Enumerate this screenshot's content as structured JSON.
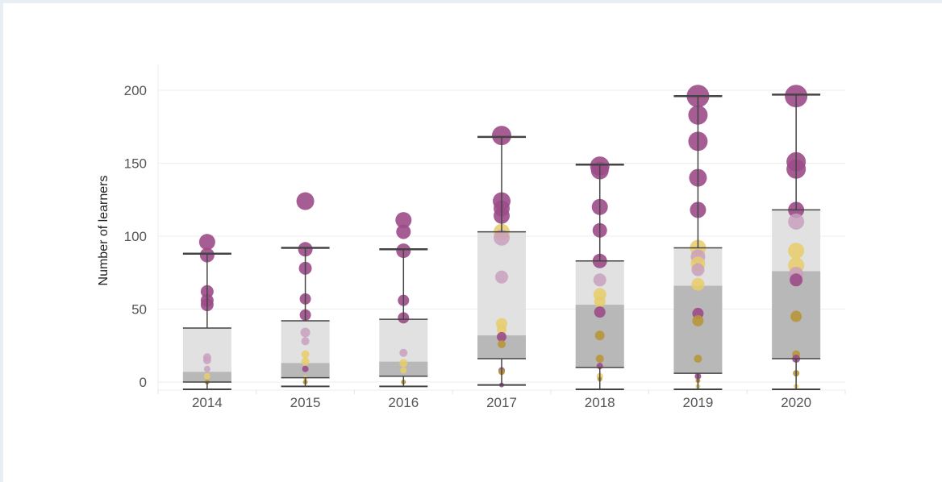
{
  "chart_data": {
    "type": "box",
    "ylabel": "Number of learners",
    "xlabel": "",
    "categories": [
      "2014",
      "2015",
      "2016",
      "2017",
      "2018",
      "2019",
      "2020"
    ],
    "ylim": [
      0,
      200
    ],
    "yticks": [
      0,
      50,
      100,
      150,
      200
    ],
    "grid": true,
    "legend": "none",
    "colors": {
      "outer_box": "#e1e1e1",
      "inner_box": "#b8b8b8",
      "whisker": "#444444",
      "purple_dots": "#9c4b88",
      "light_purple_dots": "#c9a0bd",
      "yellow_dots": "#e8cc6a",
      "gold_dots": "#b8963a",
      "gridline": "#eeeeee"
    },
    "boxes": [
      {
        "year": "2014",
        "whisker_low": -5,
        "box_low": 0,
        "inner_high": 7,
        "box_high": 37,
        "whisker_high": 88,
        "base_line": 0
      },
      {
        "year": "2015",
        "whisker_low": -3,
        "box_low": 3,
        "inner_high": 13,
        "box_high": 42,
        "whisker_high": 92,
        "base_line": 3
      },
      {
        "year": "2016",
        "whisker_low": -3,
        "box_low": 4,
        "inner_high": 14,
        "box_high": 43,
        "whisker_high": 91,
        "base_line": 4
      },
      {
        "year": "2017",
        "whisker_low": -2,
        "box_low": 16,
        "inner_high": 32,
        "box_high": 103,
        "whisker_high": 168,
        "base_line": 16
      },
      {
        "year": "2018",
        "whisker_low": -5,
        "box_low": 10,
        "inner_high": 53,
        "box_high": 83,
        "whisker_high": 149,
        "base_line": 10
      },
      {
        "year": "2019",
        "whisker_low": -5,
        "box_low": 6,
        "inner_high": 66,
        "box_high": 92,
        "whisker_high": 196,
        "base_line": 6
      },
      {
        "year": "2020",
        "whisker_low": -5,
        "box_low": 16,
        "inner_high": 76,
        "box_high": 118,
        "whisker_high": 197,
        "base_line": 16
      }
    ],
    "points": [
      {
        "year": "2014",
        "y": 96,
        "size": 10,
        "color": "purple_dots"
      },
      {
        "year": "2014",
        "y": 87,
        "size": 9,
        "color": "purple_dots"
      },
      {
        "year": "2014",
        "y": 62,
        "size": 8,
        "color": "purple_dots"
      },
      {
        "year": "2014",
        "y": 56,
        "size": 8,
        "color": "purple_dots"
      },
      {
        "year": "2014",
        "y": 53,
        "size": 8,
        "color": "purple_dots"
      },
      {
        "year": "2014",
        "y": 17,
        "size": 5,
        "color": "light_purple_dots"
      },
      {
        "year": "2014",
        "y": 15,
        "size": 5,
        "color": "light_purple_dots"
      },
      {
        "year": "2014",
        "y": 9,
        "size": 4,
        "color": "light_purple_dots"
      },
      {
        "year": "2014",
        "y": 4,
        "size": 4,
        "color": "yellow_dots"
      },
      {
        "year": "2014",
        "y": 0,
        "size": 3,
        "color": "gold_dots"
      },
      {
        "year": "2015",
        "y": 124,
        "size": 11,
        "color": "purple_dots"
      },
      {
        "year": "2015",
        "y": 91,
        "size": 9,
        "color": "purple_dots"
      },
      {
        "year": "2015",
        "y": 78,
        "size": 8,
        "color": "purple_dots"
      },
      {
        "year": "2015",
        "y": 57,
        "size": 7,
        "color": "purple_dots"
      },
      {
        "year": "2015",
        "y": 46,
        "size": 7,
        "color": "purple_dots"
      },
      {
        "year": "2015",
        "y": 34,
        "size": 6,
        "color": "light_purple_dots"
      },
      {
        "year": "2015",
        "y": 28,
        "size": 5,
        "color": "light_purple_dots"
      },
      {
        "year": "2015",
        "y": 19,
        "size": 5,
        "color": "yellow_dots"
      },
      {
        "year": "2015",
        "y": 14,
        "size": 5,
        "color": "yellow_dots"
      },
      {
        "year": "2015",
        "y": 9,
        "size": 4,
        "color": "purple_dots"
      },
      {
        "year": "2015",
        "y": 3,
        "size": 3,
        "color": "yellow_dots"
      },
      {
        "year": "2015",
        "y": 0,
        "size": 3,
        "color": "gold_dots"
      },
      {
        "year": "2016",
        "y": 111,
        "size": 10,
        "color": "purple_dots"
      },
      {
        "year": "2016",
        "y": 103,
        "size": 9,
        "color": "purple_dots"
      },
      {
        "year": "2016",
        "y": 90,
        "size": 9,
        "color": "purple_dots"
      },
      {
        "year": "2016",
        "y": 56,
        "size": 7,
        "color": "purple_dots"
      },
      {
        "year": "2016",
        "y": 44,
        "size": 7,
        "color": "purple_dots"
      },
      {
        "year": "2016",
        "y": 20,
        "size": 5,
        "color": "light_purple_dots"
      },
      {
        "year": "2016",
        "y": 13,
        "size": 5,
        "color": "yellow_dots"
      },
      {
        "year": "2016",
        "y": 8,
        "size": 4,
        "color": "yellow_dots"
      },
      {
        "year": "2016",
        "y": 0,
        "size": 3,
        "color": "gold_dots"
      },
      {
        "year": "2017",
        "y": 169,
        "size": 12,
        "color": "purple_dots"
      },
      {
        "year": "2017",
        "y": 124,
        "size": 11,
        "color": "purple_dots"
      },
      {
        "year": "2017",
        "y": 119,
        "size": 10,
        "color": "purple_dots"
      },
      {
        "year": "2017",
        "y": 114,
        "size": 10,
        "color": "purple_dots"
      },
      {
        "year": "2017",
        "y": 103,
        "size": 10,
        "color": "yellow_dots"
      },
      {
        "year": "2017",
        "y": 99,
        "size": 10,
        "color": "light_purple_dots"
      },
      {
        "year": "2017",
        "y": 72,
        "size": 8,
        "color": "light_purple_dots"
      },
      {
        "year": "2017",
        "y": 40,
        "size": 7,
        "color": "yellow_dots"
      },
      {
        "year": "2017",
        "y": 36,
        "size": 6,
        "color": "yellow_dots"
      },
      {
        "year": "2017",
        "y": 31,
        "size": 6,
        "color": "purple_dots"
      },
      {
        "year": "2017",
        "y": 26,
        "size": 5,
        "color": "gold_dots"
      },
      {
        "year": "2017",
        "y": 8,
        "size": 4,
        "color": "purple_dots"
      },
      {
        "year": "2017",
        "y": 7,
        "size": 4,
        "color": "gold_dots"
      },
      {
        "year": "2017",
        "y": -2,
        "size": 3,
        "color": "purple_dots"
      },
      {
        "year": "2018",
        "y": 148,
        "size": 12,
        "color": "purple_dots"
      },
      {
        "year": "2018",
        "y": 145,
        "size": 11,
        "color": "purple_dots"
      },
      {
        "year": "2018",
        "y": 120,
        "size": 10,
        "color": "purple_dots"
      },
      {
        "year": "2018",
        "y": 104,
        "size": 9,
        "color": "purple_dots"
      },
      {
        "year": "2018",
        "y": 83,
        "size": 9,
        "color": "purple_dots"
      },
      {
        "year": "2018",
        "y": 70,
        "size": 8,
        "color": "light_purple_dots"
      },
      {
        "year": "2018",
        "y": 60,
        "size": 8,
        "color": "yellow_dots"
      },
      {
        "year": "2018",
        "y": 55,
        "size": 7,
        "color": "yellow_dots"
      },
      {
        "year": "2018",
        "y": 48,
        "size": 7,
        "color": "purple_dots"
      },
      {
        "year": "2018",
        "y": 32,
        "size": 6,
        "color": "gold_dots"
      },
      {
        "year": "2018",
        "y": 16,
        "size": 5,
        "color": "gold_dots"
      },
      {
        "year": "2018",
        "y": 11,
        "size": 4,
        "color": "purple_dots"
      },
      {
        "year": "2018",
        "y": 4,
        "size": 4,
        "color": "yellow_dots"
      },
      {
        "year": "2018",
        "y": 2,
        "size": 3,
        "color": "gold_dots"
      },
      {
        "year": "2019",
        "y": 196,
        "size": 14,
        "color": "purple_dots"
      },
      {
        "year": "2019",
        "y": 183,
        "size": 12,
        "color": "purple_dots"
      },
      {
        "year": "2019",
        "y": 165,
        "size": 12,
        "color": "purple_dots"
      },
      {
        "year": "2019",
        "y": 140,
        "size": 11,
        "color": "purple_dots"
      },
      {
        "year": "2019",
        "y": 118,
        "size": 10,
        "color": "purple_dots"
      },
      {
        "year": "2019",
        "y": 92,
        "size": 10,
        "color": "yellow_dots"
      },
      {
        "year": "2019",
        "y": 86,
        "size": 9,
        "color": "light_purple_dots"
      },
      {
        "year": "2019",
        "y": 81,
        "size": 9,
        "color": "yellow_dots"
      },
      {
        "year": "2019",
        "y": 77,
        "size": 8,
        "color": "light_purple_dots"
      },
      {
        "year": "2019",
        "y": 67,
        "size": 8,
        "color": "yellow_dots"
      },
      {
        "year": "2019",
        "y": 47,
        "size": 7,
        "color": "purple_dots"
      },
      {
        "year": "2019",
        "y": 42,
        "size": 7,
        "color": "gold_dots"
      },
      {
        "year": "2019",
        "y": 16,
        "size": 5,
        "color": "gold_dots"
      },
      {
        "year": "2019",
        "y": 4,
        "size": 4,
        "color": "purple_dots"
      },
      {
        "year": "2019",
        "y": 1,
        "size": 3,
        "color": "gold_dots"
      },
      {
        "year": "2019",
        "y": -3,
        "size": 3,
        "color": "yellow_dots"
      },
      {
        "year": "2020",
        "y": 196,
        "size": 14,
        "color": "purple_dots"
      },
      {
        "year": "2020",
        "y": 151,
        "size": 12,
        "color": "purple_dots"
      },
      {
        "year": "2020",
        "y": 146,
        "size": 12,
        "color": "purple_dots"
      },
      {
        "year": "2020",
        "y": 118,
        "size": 10,
        "color": "purple_dots"
      },
      {
        "year": "2020",
        "y": 110,
        "size": 10,
        "color": "light_purple_dots"
      },
      {
        "year": "2020",
        "y": 90,
        "size": 10,
        "color": "yellow_dots"
      },
      {
        "year": "2020",
        "y": 80,
        "size": 10,
        "color": "yellow_dots"
      },
      {
        "year": "2020",
        "y": 74,
        "size": 9,
        "color": "light_purple_dots"
      },
      {
        "year": "2020",
        "y": 70,
        "size": 8,
        "color": "purple_dots"
      },
      {
        "year": "2020",
        "y": 45,
        "size": 7,
        "color": "gold_dots"
      },
      {
        "year": "2020",
        "y": 19,
        "size": 5,
        "color": "gold_dots"
      },
      {
        "year": "2020",
        "y": 16,
        "size": 5,
        "color": "purple_dots"
      },
      {
        "year": "2020",
        "y": 6,
        "size": 4,
        "color": "gold_dots"
      },
      {
        "year": "2020",
        "y": -3,
        "size": 3,
        "color": "yellow_dots"
      }
    ]
  }
}
